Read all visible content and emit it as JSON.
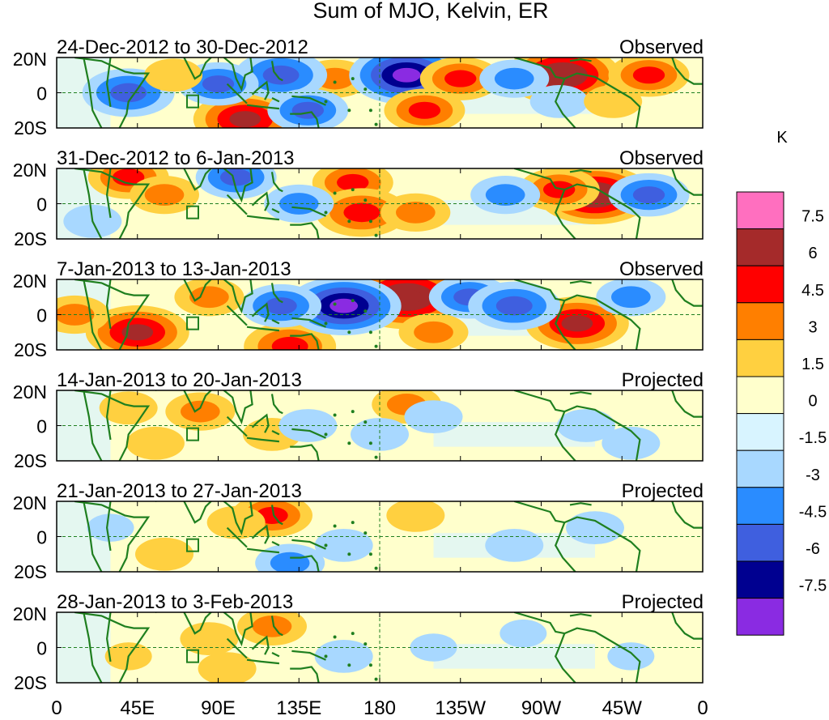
{
  "chart_data": {
    "type": "heatmap",
    "title": "Sum of MJO, Kelvin, ER",
    "units": "K",
    "lat_tick_labels": [
      "20N",
      "0",
      "20S"
    ],
    "lon_tick_labels": [
      "0",
      "45E",
      "90E",
      "135E",
      "180",
      "135W",
      "90W",
      "45W",
      "0"
    ],
    "lat_range": [
      -20,
      20
    ],
    "lon_range": [
      0,
      360
    ],
    "colorbar": {
      "levels": [
        "7.5",
        "6",
        "4.5",
        "3",
        "1.5",
        "0",
        "-1.5",
        "-3",
        "-4.5",
        "-6",
        "-7.5"
      ],
      "colors": [
        "#ff6fbf",
        "#a52a2a",
        "#ff0000",
        "#ff7f00",
        "#ffd040",
        "#ffffcc",
        "#d8f4ff",
        "#a8d8ff",
        "#2a8cff",
        "#3f5fdf",
        "#000090",
        "#8a2be2"
      ]
    },
    "panels": [
      {
        "period": "24-Dec-2012 to 30-Dec-2012",
        "kind": "Observed",
        "blobs": [
          {
            "lon": 282,
            "lat": 10,
            "v": 7
          },
          {
            "lon": 330,
            "lat": 10,
            "v": 4
          },
          {
            "lon": 280,
            "lat": -5,
            "v": -2
          },
          {
            "lon": 105,
            "lat": -15,
            "v": 6
          },
          {
            "lon": 155,
            "lat": 8,
            "v": 3
          },
          {
            "lon": 195,
            "lat": 10,
            "v": -7
          },
          {
            "lon": 205,
            "lat": -10,
            "v": 4
          },
          {
            "lon": 225,
            "lat": 8,
            "v": 4
          },
          {
            "lon": 125,
            "lat": 10,
            "v": -5
          },
          {
            "lon": 90,
            "lat": 5,
            "v": -4
          },
          {
            "lon": 40,
            "lat": 0,
            "v": -5
          },
          {
            "lon": 140,
            "lat": -10,
            "v": -4
          },
          {
            "lon": 255,
            "lat": 8,
            "v": -3
          },
          {
            "lon": 310,
            "lat": -5,
            "v": 2
          },
          {
            "lon": 65,
            "lat": 10,
            "v": 2
          }
        ]
      },
      {
        "period": "31-Dec-2012 to 6-Jan-2013",
        "kind": "Observed",
        "blobs": [
          {
            "lon": 300,
            "lat": 5,
            "v": 7
          },
          {
            "lon": 280,
            "lat": 8,
            "v": 4
          },
          {
            "lon": 165,
            "lat": 12,
            "v": 4
          },
          {
            "lon": 170,
            "lat": -5,
            "v": 5
          },
          {
            "lon": 40,
            "lat": 15,
            "v": 4
          },
          {
            "lon": 100,
            "lat": 15,
            "v": -4
          },
          {
            "lon": 60,
            "lat": 5,
            "v": 3
          },
          {
            "lon": 250,
            "lat": 5,
            "v": -3
          },
          {
            "lon": 330,
            "lat": 5,
            "v": -4
          },
          {
            "lon": 200,
            "lat": -5,
            "v": 3
          },
          {
            "lon": 135,
            "lat": 0,
            "v": -3
          },
          {
            "lon": 20,
            "lat": -10,
            "v": -2
          }
        ]
      },
      {
        "period": "7-Jan-2013 to 13-Jan-2013",
        "kind": "Observed",
        "blobs": [
          {
            "lon": 195,
            "lat": 10,
            "v": 8
          },
          {
            "lon": 290,
            "lat": -5,
            "v": 6
          },
          {
            "lon": 45,
            "lat": -10,
            "v": 6
          },
          {
            "lon": 130,
            "lat": -18,
            "v": 5
          },
          {
            "lon": 160,
            "lat": 5,
            "v": -7
          },
          {
            "lon": 125,
            "lat": 5,
            "v": -4
          },
          {
            "lon": 230,
            "lat": 10,
            "v": -4
          },
          {
            "lon": 255,
            "lat": 5,
            "v": -5
          },
          {
            "lon": 320,
            "lat": 10,
            "v": -3
          },
          {
            "lon": 85,
            "lat": 10,
            "v": 3
          },
          {
            "lon": 10,
            "lat": 0,
            "v": 3
          },
          {
            "lon": 210,
            "lat": -10,
            "v": 3
          }
        ]
      },
      {
        "period": "14-Jan-2013 to 20-Jan-2013",
        "kind": "Projected",
        "blobs": [
          {
            "lon": 80,
            "lat": 8,
            "v": 3
          },
          {
            "lon": 120,
            "lat": -5,
            "v": 2
          },
          {
            "lon": 195,
            "lat": 12,
            "v": 3
          },
          {
            "lon": 210,
            "lat": 5,
            "v": -2
          },
          {
            "lon": 180,
            "lat": -5,
            "v": -2
          },
          {
            "lon": 140,
            "lat": 0,
            "v": -2
          },
          {
            "lon": 295,
            "lat": 0,
            "v": -2
          },
          {
            "lon": 320,
            "lat": -10,
            "v": -2
          },
          {
            "lon": 40,
            "lat": 10,
            "v": 2
          },
          {
            "lon": 55,
            "lat": -10,
            "v": 2
          }
        ]
      },
      {
        "period": "21-Jan-2013 to 27-Jan-2013",
        "kind": "Projected",
        "blobs": [
          {
            "lon": 120,
            "lat": 12,
            "v": 4
          },
          {
            "lon": 100,
            "lat": 8,
            "v": 2
          },
          {
            "lon": 200,
            "lat": 12,
            "v": 2
          },
          {
            "lon": 160,
            "lat": -5,
            "v": -2
          },
          {
            "lon": 255,
            "lat": -5,
            "v": -2
          },
          {
            "lon": 300,
            "lat": 5,
            "v": -2
          },
          {
            "lon": 60,
            "lat": -10,
            "v": 2
          },
          {
            "lon": 130,
            "lat": -15,
            "v": -3
          },
          {
            "lon": 30,
            "lat": 5,
            "v": -1
          }
        ]
      },
      {
        "period": "28-Jan-2013 to 3-Feb-2013",
        "kind": "Projected",
        "blobs": [
          {
            "lon": 120,
            "lat": 12,
            "v": 3
          },
          {
            "lon": 85,
            "lat": 5,
            "v": 2
          },
          {
            "lon": 95,
            "lat": -12,
            "v": 2
          },
          {
            "lon": 160,
            "lat": -5,
            "v": -2
          },
          {
            "lon": 210,
            "lat": 0,
            "v": -1
          },
          {
            "lon": 260,
            "lat": 8,
            "v": -1
          },
          {
            "lon": 320,
            "lat": -5,
            "v": -1
          },
          {
            "lon": 40,
            "lat": -5,
            "v": 1
          }
        ]
      }
    ]
  }
}
